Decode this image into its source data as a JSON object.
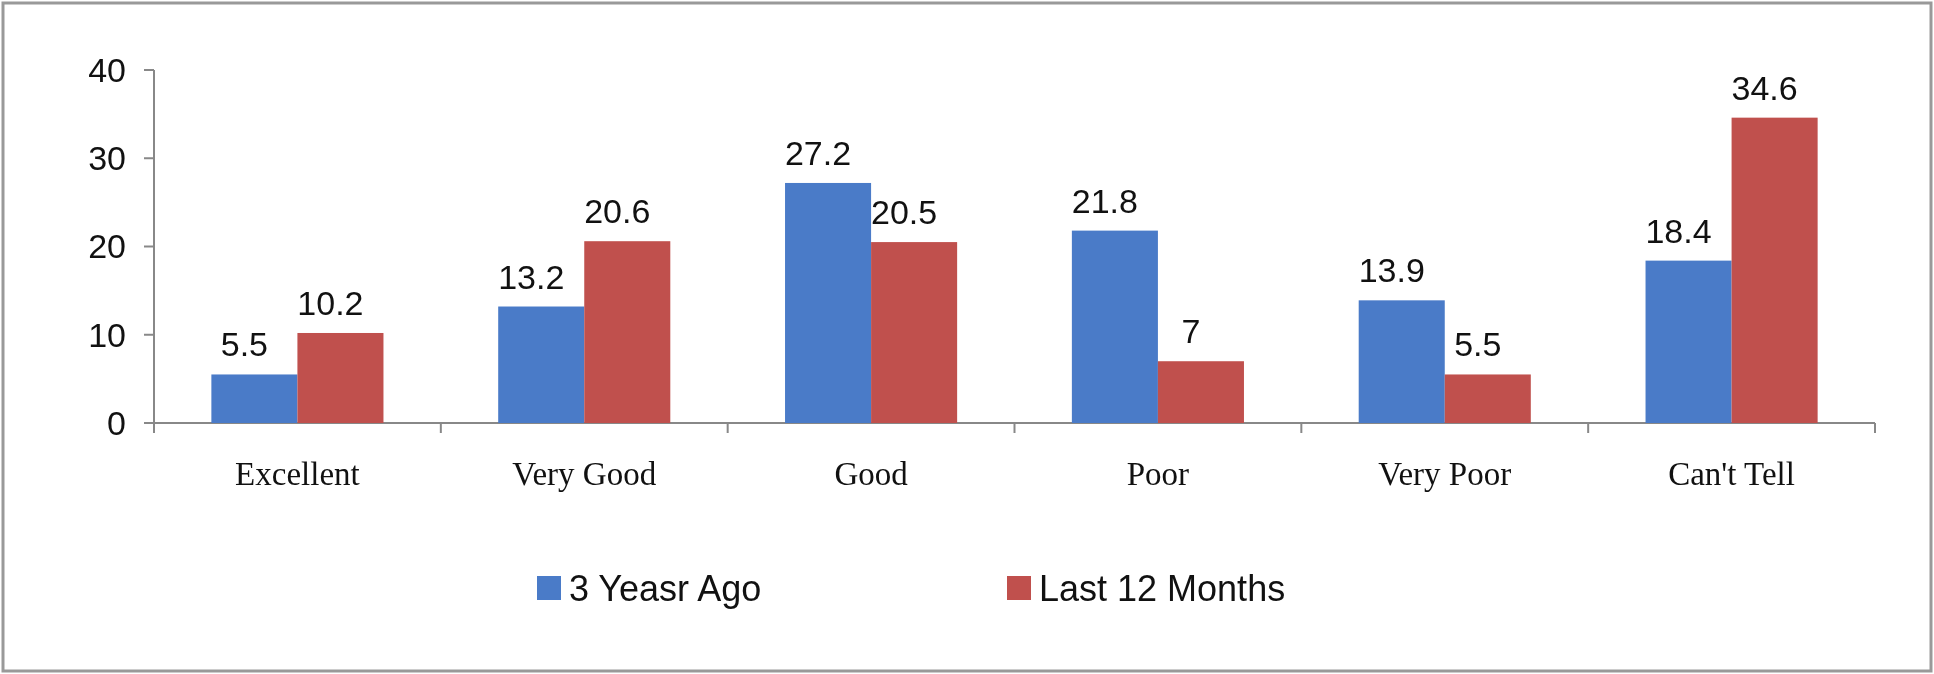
{
  "chart_data": {
    "type": "bar",
    "categories": [
      "Excellent",
      "Very Good",
      "Good",
      "Poor",
      "Very Poor",
      "Can't Tell"
    ],
    "series": [
      {
        "name": "3 Yeasr Ago",
        "color": "#4a7bc8",
        "values": [
          5.5,
          13.2,
          27.2,
          21.8,
          13.9,
          18.4
        ]
      },
      {
        "name": "Last 12 Months",
        "color": "#c0504d",
        "values": [
          10.2,
          20.6,
          20.5,
          7,
          5.5,
          34.6
        ]
      }
    ],
    "ylim": [
      0,
      40
    ],
    "yticks": [
      0,
      10,
      20,
      30,
      40
    ],
    "data_labels": true,
    "legend": "bottom",
    "grid": false
  }
}
